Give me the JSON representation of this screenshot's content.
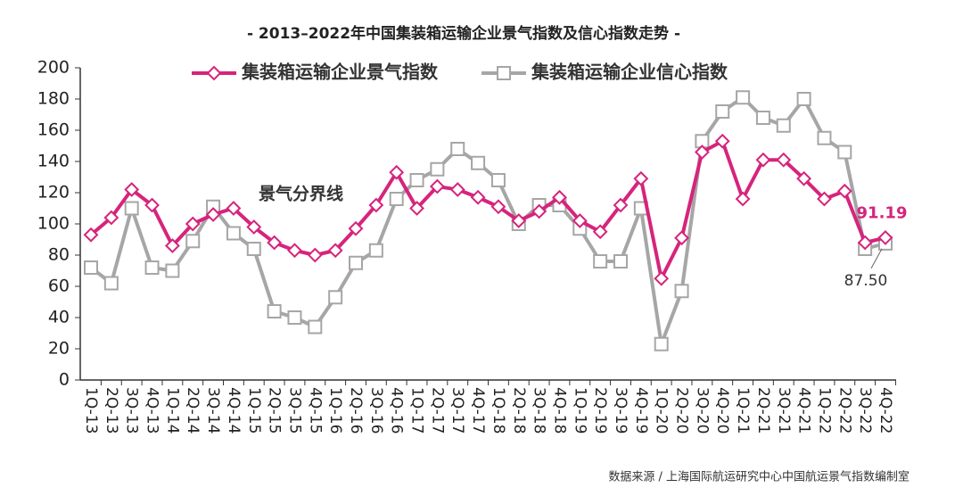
{
  "chart_data": {
    "type": "line",
    "title": "- 2013–2022年中国集装箱运输企业景气指数及信心指数走势 -",
    "categories": [
      "1Q-13",
      "2Q-13",
      "3Q-13",
      "4Q-13",
      "1Q-14",
      "2Q-14",
      "3Q-14",
      "4Q-14",
      "1Q-15",
      "2Q-15",
      "3Q-15",
      "4Q-15",
      "1Q-16",
      "2Q-16",
      "3Q-16",
      "4Q-16",
      "1Q-17",
      "2Q-17",
      "3Q-17",
      "4Q-17",
      "1Q-18",
      "2Q-18",
      "3Q-18",
      "4Q-18",
      "1Q-19",
      "2Q-19",
      "3Q-19",
      "4Q-19",
      "1Q-20",
      "2Q-20",
      "3Q-20",
      "4Q-20",
      "1Q-21",
      "2Q-21",
      "3Q-21",
      "4Q-21",
      "1Q-22",
      "2Q-22",
      "3Q-22",
      "4Q-22"
    ],
    "series": [
      {
        "name": "集装箱运输企业景气指数",
        "color": "#d6247c",
        "marker": "diamond",
        "values": [
          93,
          104,
          122,
          112,
          86,
          100,
          106,
          110,
          98,
          88,
          83,
          80,
          83,
          97,
          112,
          133,
          110,
          124,
          122,
          117,
          111,
          102,
          108,
          117,
          102,
          95,
          112,
          129,
          65,
          91,
          146,
          153,
          116,
          141,
          141,
          129,
          116,
          121,
          88,
          91.19
        ]
      },
      {
        "name": "集装箱运输企业信心指数",
        "color": "#a6a6a6",
        "marker": "square",
        "values": [
          72,
          62,
          110,
          72,
          70,
          89,
          111,
          94,
          84,
          44,
          40,
          34,
          53,
          75,
          83,
          116,
          128,
          135,
          148,
          139,
          128,
          100,
          112,
          112,
          97,
          76,
          76,
          110,
          23,
          57,
          153,
          172,
          181,
          168,
          163,
          180,
          155,
          146,
          84,
          87.5
        ],
        "value_labels": [
          null,
          null,
          null,
          null,
          null,
          null,
          null,
          null,
          null,
          null,
          null,
          null,
          null,
          null,
          null,
          null,
          null,
          null,
          null,
          null,
          null,
          null,
          null,
          null,
          null,
          null,
          null,
          null,
          null,
          null,
          null,
          null,
          null,
          null,
          null,
          null,
          null,
          null,
          null,
          "87.50"
        ]
      }
    ],
    "ylim": [
      0,
      200
    ],
    "yticks": [
      0,
      20,
      40,
      60,
      80,
      100,
      120,
      140,
      160,
      180,
      200
    ],
    "annotation": "景气分界线",
    "source": "数据来源 / 上海国际航运研究中心中国航运景气指数编制室"
  }
}
